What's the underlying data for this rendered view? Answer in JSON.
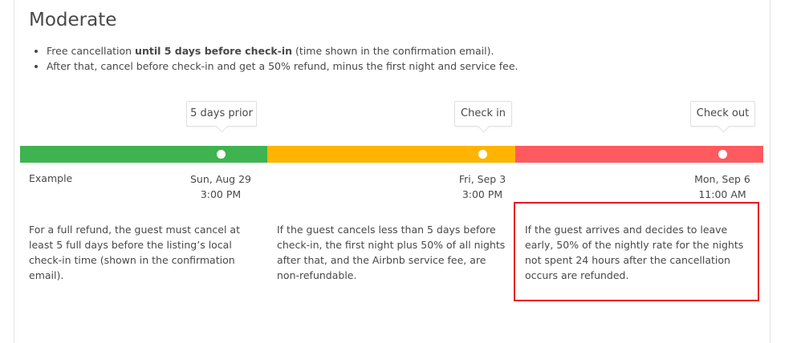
{
  "policy": {
    "title": "Moderate",
    "bullets": [
      {
        "pre": "Free cancellation ",
        "bold": "until 5 days before check-in",
        "post": " (time shown in the confirmation email)."
      },
      {
        "pre": "After that, cancel before check-in and get a 50% refund, minus the first night and service fee.",
        "bold": "",
        "post": ""
      }
    ]
  },
  "timeline": {
    "example_label": "Example",
    "colors": {
      "full_refund": "#3fb34f",
      "partial_refund": "#ffb400",
      "no_refund": "#ff5a5f"
    },
    "markers": [
      {
        "label": "5 days prior",
        "date": "Sun, Aug 29",
        "time": "3:00 PM"
      },
      {
        "label": "Check in",
        "date": "Fri, Sep 3",
        "time": "3:00 PM"
      },
      {
        "label": "Check out",
        "date": "Mon, Sep 6",
        "time": "11:00 AM"
      }
    ],
    "descriptions": [
      "For a full refund, the guest must cancel at least 5 full days before the listing’s local check-in time (shown in the confirmation email).",
      "If the guest cancels less than 5 days before check-in, the first night plus 50% of all nights after that, and the Airbnb service fee, are non-refundable.",
      "If the guest arrives and decides to leave early, 50% of the nightly rate for the nights not spent 24 hours after the cancellation occurs are refunded."
    ],
    "highlight_color": "#e81123"
  }
}
